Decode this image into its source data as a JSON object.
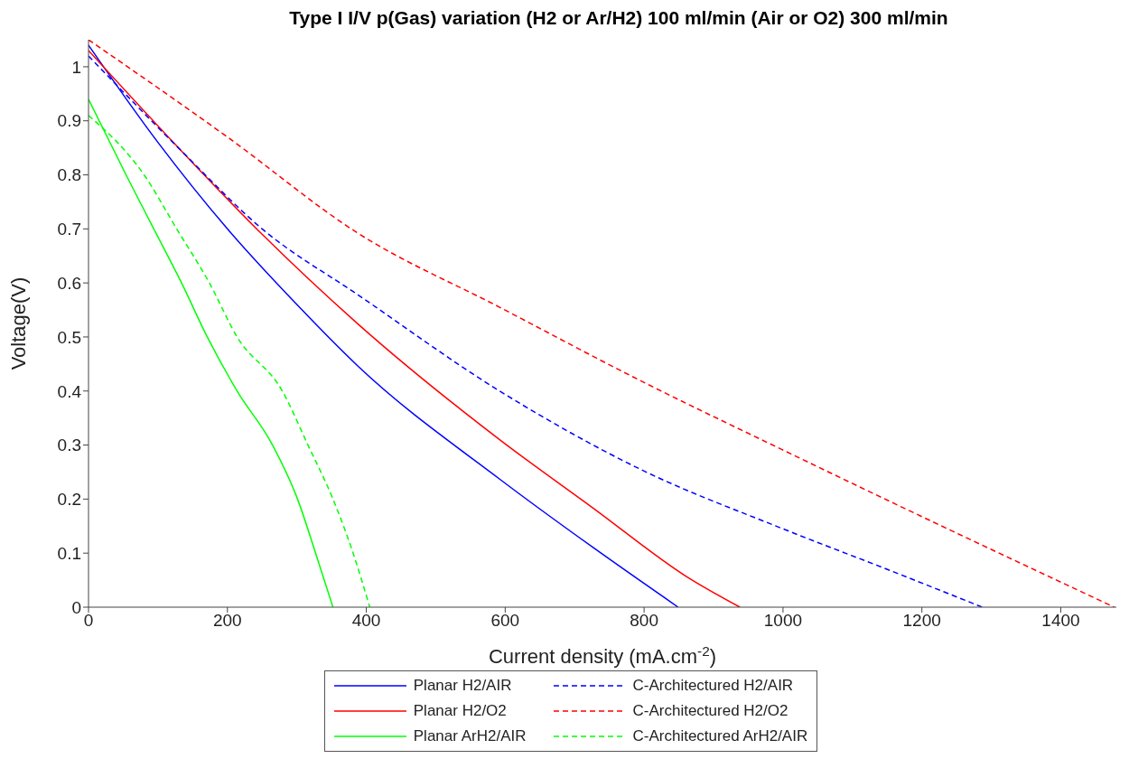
{
  "chart_data": {
    "type": "line",
    "title": "Type I I/V p(Gas) variation (H2 or Ar/H2) 100 ml/min (Air or O2) 300 ml/min",
    "xlabel": "Current density (mA.cm$^{-2}$)",
    "ylabel": "Voltage(V)",
    "xlim": [
      0,
      1480
    ],
    "xticks": [
      0,
      200,
      400,
      600,
      800,
      1000,
      1200,
      1400
    ],
    "ylim": [
      0,
      1.05
    ],
    "yticks": [
      0,
      0.1,
      0.2,
      0.3,
      0.4,
      0.5,
      0.6,
      0.7,
      0.8,
      0.9,
      1
    ],
    "grid": false,
    "legend": "bottom",
    "marker": "none",
    "series": [
      {
        "name": "Planar H2/AIR",
        "color": "#0000ff",
        "line_style": "solid",
        "x": [
          0,
          100,
          200,
          300,
          388,
          592,
          727,
          849
        ],
        "values": [
          1.04,
          0.86,
          0.7,
          0.56,
          0.446,
          0.237,
          0.11,
          0
        ]
      },
      {
        "name": "Planar H2/O2",
        "color": "#ff0000",
        "line_style": "solid",
        "x": [
          0,
          134,
          250,
          388,
          592,
          727,
          863,
          938
        ],
        "values": [
          1.03,
          0.844,
          0.69,
          0.524,
          0.31,
          0.183,
          0.055,
          0
        ]
      },
      {
        "name": "Planar ArH2/AIR",
        "color": "#00ff00",
        "line_style": "solid",
        "x": [
          0,
          54,
          94,
          134,
          171,
          214,
          265,
          301,
          327,
          352
        ],
        "values": [
          0.94,
          0.8,
          0.7,
          0.6,
          0.5,
          0.4,
          0.3,
          0.2,
          0.1,
          0
        ]
      },
      {
        "name": "C-Architectured H2/AIR",
        "color": "#0000ff",
        "line_style": "dashed",
        "x": [
          0,
          134,
          250,
          388,
          592,
          795,
          998,
          1160,
          1287
        ],
        "values": [
          1.02,
          0.844,
          0.7,
          0.578,
          0.4,
          0.255,
          0.146,
          0.065,
          0
        ]
      },
      {
        "name": "C-Architectured H2/O2",
        "color": "#ff0000",
        "line_style": "dashed",
        "x": [
          0,
          200,
          388,
          592,
          795,
          998,
          1160,
          1477
        ],
        "values": [
          1.05,
          0.87,
          0.692,
          0.555,
          0.419,
          0.292,
          0.192,
          0
        ]
      },
      {
        "name": "C-Architectured ArH2/AIR",
        "color": "#00ff00",
        "line_style": "dashed",
        "x": [
          0,
          80,
          127,
          174,
          214,
          279,
          316,
          352,
          381,
          405
        ],
        "values": [
          0.91,
          0.8,
          0.7,
          0.6,
          0.5,
          0.4,
          0.3,
          0.2,
          0.1,
          0
        ]
      }
    ]
  }
}
